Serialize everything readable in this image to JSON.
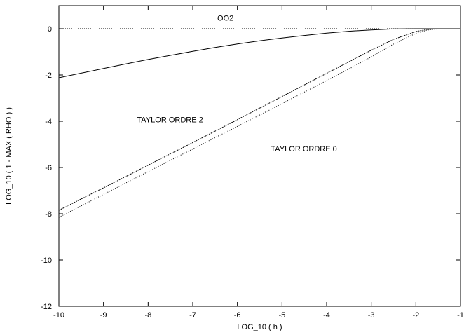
{
  "chart_data": {
    "type": "line",
    "title": "",
    "xlabel": "LOG_10 ( h )",
    "ylabel": "LOG_10 ( 1 - MAX ( RHO ) )",
    "xlim": [
      -10,
      -1
    ],
    "ylim": [
      -12,
      1
    ],
    "xticks": [
      -10,
      -9,
      -8,
      -7,
      -6,
      -5,
      -4,
      -3,
      -2,
      -1
    ],
    "yticks": [
      0,
      -2,
      -4,
      -6,
      -8,
      -10,
      -12
    ],
    "grid": false,
    "legend": "none",
    "reference_line": {
      "y": 0,
      "style": "dotted"
    },
    "series": [
      {
        "name": "OO2",
        "style": "solid",
        "x": [
          -10,
          -9.5,
          -9,
          -8.5,
          -8,
          -7.5,
          -7,
          -6.5,
          -6,
          -5.5,
          -5,
          -4.5,
          -4,
          -3.5,
          -3,
          -2.5,
          -2,
          -1.5,
          -1
        ],
        "y": [
          -2.12,
          -1.92,
          -1.72,
          -1.52,
          -1.33,
          -1.15,
          -0.98,
          -0.81,
          -0.66,
          -0.52,
          -0.4,
          -0.29,
          -0.19,
          -0.11,
          -0.05,
          -0.01,
          0,
          0,
          0
        ]
      },
      {
        "name": "TAYLOR ORDRE 2",
        "style": "dashed",
        "x": [
          -10,
          -9.5,
          -9,
          -8.5,
          -8,
          -7.5,
          -7,
          -6.5,
          -6,
          -5.5,
          -5,
          -4.5,
          -4,
          -3.5,
          -3,
          -2.5,
          -2,
          -1.75,
          -1.5,
          -1.25,
          -1
        ],
        "y": [
          -7.85,
          -7.36,
          -6.88,
          -6.39,
          -5.9,
          -5.41,
          -4.92,
          -4.43,
          -3.93,
          -3.43,
          -2.93,
          -2.43,
          -1.93,
          -1.43,
          -0.93,
          -0.46,
          -0.12,
          -0.03,
          0,
          0,
          0
        ]
      },
      {
        "name": "TAYLOR ORDRE 0",
        "style": "dotted",
        "x": [
          -10,
          -9.5,
          -9,
          -8.5,
          -8,
          -7.5,
          -7,
          -6.5,
          -6,
          -5.5,
          -5,
          -4.5,
          -4,
          -3.5,
          -3,
          -2.5,
          -2,
          -1.75,
          -1.5,
          -1.25,
          -1
        ],
        "y": [
          -8.15,
          -7.66,
          -7.16,
          -6.67,
          -6.18,
          -5.69,
          -5.2,
          -4.71,
          -4.22,
          -3.73,
          -3.24,
          -2.74,
          -2.24,
          -1.74,
          -1.22,
          -0.66,
          -0.2,
          -0.06,
          -0.01,
          0,
          0
        ]
      }
    ],
    "annotations": [
      {
        "text": "OO2",
        "x": -6.45,
        "y": 0.35
      },
      {
        "text": "TAYLOR ORDRE 2",
        "x": -8.25,
        "y": -4.05
      },
      {
        "text": "TAYLOR ORDRE 0",
        "x": -5.25,
        "y": -5.3
      }
    ]
  }
}
